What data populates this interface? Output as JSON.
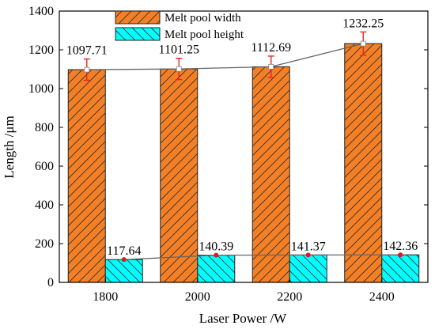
{
  "chart_data": {
    "type": "bar",
    "xlabel": "Laser Power /W",
    "ylabel": "Length /μm",
    "categories": [
      "1800",
      "2000",
      "2200",
      "2400"
    ],
    "ylim": [
      0,
      1400
    ],
    "yticks": [
      0,
      200,
      400,
      600,
      800,
      1000,
      1200,
      1400
    ],
    "grid": false,
    "legend_position": "top-center",
    "series": [
      {
        "name": "Melt pool width",
        "values": [
          1097.71,
          1101.25,
          1112.69,
          1232.25
        ],
        "labels": [
          "1097.71",
          "1101.25",
          "1112.69",
          "1232.25"
        ],
        "error": [
          55,
          55,
          55,
          60
        ],
        "color": "#f47f24",
        "hatch": "diagonal-up",
        "trend_line": true
      },
      {
        "name": "Melt pool height",
        "values": [
          117.64,
          140.39,
          141.37,
          142.36
        ],
        "labels": [
          "117.64",
          "140.39",
          "141.37",
          "142.36"
        ],
        "error": [
          0,
          0,
          0,
          0
        ],
        "color": "#00ffff",
        "hatch": "diagonal-down",
        "trend_line": true
      }
    ],
    "trend_line_color": "#666666",
    "marker_color": "#cc2222",
    "error_color": "#ee2222"
  }
}
